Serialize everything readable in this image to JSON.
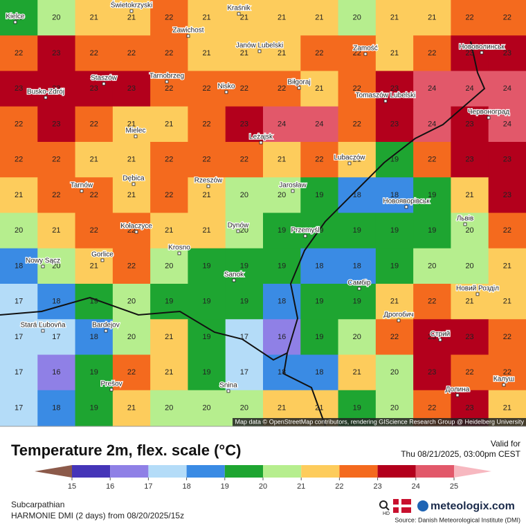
{
  "map": {
    "grid": [
      [
        19,
        20,
        21,
        21,
        22,
        21,
        21,
        21,
        21,
        20,
        21,
        21,
        22,
        22
      ],
      [
        22,
        23,
        22,
        22,
        22,
        21,
        21,
        21,
        22,
        22,
        21,
        22,
        23,
        23
      ],
      [
        23,
        23,
        23,
        23,
        22,
        22,
        22,
        22,
        21,
        22,
        23,
        24,
        24,
        24
      ],
      [
        22,
        23,
        22,
        21,
        21,
        22,
        23,
        24,
        24,
        22,
        23,
        24,
        23,
        24
      ],
      [
        22,
        22,
        21,
        21,
        22,
        22,
        22,
        21,
        22,
        21,
        19,
        22,
        23,
        23
      ],
      [
        21,
        22,
        22,
        21,
        22,
        21,
        20,
        20,
        19,
        18,
        18,
        19,
        21,
        23
      ],
      [
        20,
        21,
        22,
        22,
        21,
        21,
        20,
        19,
        19,
        19,
        19,
        19,
        20,
        22
      ],
      [
        18,
        20,
        21,
        22,
        20,
        19,
        19,
        19,
        18,
        18,
        19,
        20,
        20,
        21
      ],
      [
        17,
        18,
        19,
        20,
        19,
        19,
        19,
        18,
        19,
        19,
        21,
        22,
        21,
        21
      ],
      [
        17,
        17,
        18,
        20,
        21,
        19,
        17,
        16,
        19,
        20,
        22,
        23,
        23,
        22
      ],
      [
        17,
        16,
        19,
        22,
        21,
        19,
        17,
        18,
        18,
        21,
        20,
        23,
        22,
        22
      ],
      [
        17,
        18,
        19,
        21,
        20,
        20,
        20,
        21,
        21,
        19,
        20,
        22,
        23,
        21
      ]
    ],
    "cities": [
      "Kielce",
      "Świetokrzyski",
      "Kraśnik",
      "Zawichost",
      "Janów Lubelski",
      "Zamość",
      "Нововолинськ",
      "Staszów",
      "Tarnobrzeg",
      "Nisko",
      "Biłgoraj",
      "Busko-Zdrój",
      "Tomaszów Lubelski",
      "Червоноград",
      "Mielec",
      "Leżajsk",
      "Lubaczów",
      "Tarnów",
      "Dębica",
      "Rzeszów",
      "Jarosław",
      "Новояворівськ",
      "Kołaczyce",
      "Dynów",
      "Przemyśl",
      "Львів",
      "Krosno",
      "Gorlice",
      "Nowy Sącz",
      "Sanok",
      "Самбір",
      "Новий Розділ",
      "Stará Ľubovňa",
      "Bardejov",
      "Дрогобич",
      "Стрий",
      "Prešov",
      "Snina",
      "Долина",
      "Калуш"
    ],
    "attribution": "Map data © OpenStreetMap contributors, rendering GIScience Research Group @ Heidelberg University"
  },
  "header": {
    "title": "Temperature 2m, flex. scale (°C)",
    "valid_label": "Valid for",
    "valid_time": "Thu 08/21/2025, 03:00pm CEST"
  },
  "legend": {
    "ticks": [
      15,
      16,
      17,
      18,
      19,
      20,
      21,
      22,
      23,
      24,
      25
    ],
    "colors": [
      "#4535b8",
      "#8f80e6",
      "#b4dcf8",
      "#3a8be4",
      "#1ea531",
      "#b6ee8e",
      "#fdcc5c",
      "#f46a1e",
      "#b3001c",
      "#e2586a"
    ],
    "low_color": "#8c5a4a",
    "high_color": "#f7b8c0"
  },
  "footer": {
    "region": "Subcarpathian",
    "model": "HARMONIE DMI (2 days) from 08/20/2025/15z",
    "hd": "HD",
    "brand": "meteologix.com",
    "source": "Source: Danish Meteorological Institute (DMI)"
  }
}
